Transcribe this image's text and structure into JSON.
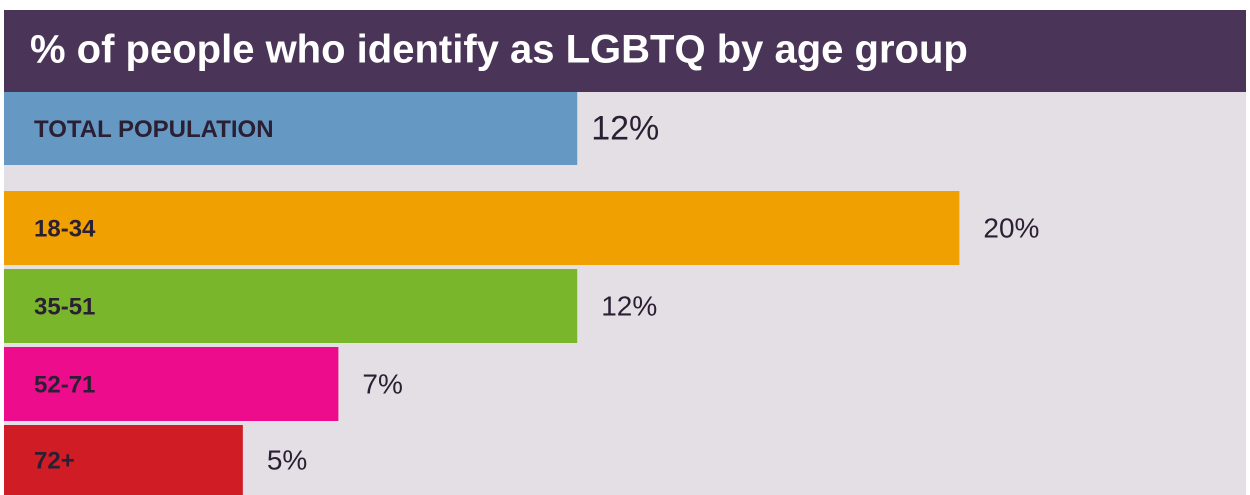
{
  "chart_data": {
    "type": "bar",
    "orientation": "horizontal",
    "title": "% of people who identify as LGBTQ by age group",
    "categories": [
      "TOTAL POPULATION",
      "18-34",
      "35-51",
      "52-71",
      "72+"
    ],
    "values": [
      12,
      20,
      12,
      7,
      5
    ],
    "value_labels": [
      "12%",
      "20%",
      "12%",
      "7%",
      "5%"
    ],
    "colors": [
      "#6698c4",
      "#f0a000",
      "#7ab62c",
      "#ec0c8c",
      "#d01c24"
    ],
    "xlim": [
      0,
      26
    ]
  }
}
